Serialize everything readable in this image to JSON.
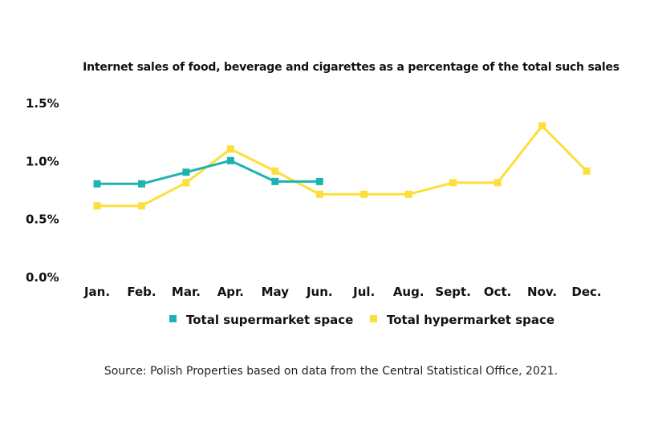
{
  "chart_data": {
    "type": "line",
    "title": "Internet sales of food, beverage and cigarettes as a percentage of the total such sales",
    "categories": [
      "Jan.",
      "Feb.",
      "Mar.",
      "Apr.",
      "May",
      "Jun.",
      "Jul.",
      "Aug.",
      "Sept.",
      "Oct.",
      "Nov.",
      "Dec."
    ],
    "y_ticks": [
      "0.0%",
      "0.5%",
      "1.0%",
      "1.5%"
    ],
    "ylim": [
      0,
      1.5
    ],
    "grid": false,
    "legend_position": "bottom",
    "series": [
      {
        "name": "Total supermarket space",
        "color": "#1fb2b0",
        "values": [
          0.8,
          0.8,
          0.9,
          1.0,
          0.82,
          0.82,
          null,
          null,
          null,
          null,
          null,
          null
        ]
      },
      {
        "name": "Total hypermarket space",
        "color": "#fcdf3a",
        "values": [
          0.61,
          0.61,
          0.81,
          1.1,
          0.91,
          0.71,
          0.71,
          0.71,
          0.81,
          0.81,
          1.3,
          0.91
        ]
      }
    ]
  },
  "source": "Source: Polish Properties based on data from the Central Statistical Office, 2021."
}
